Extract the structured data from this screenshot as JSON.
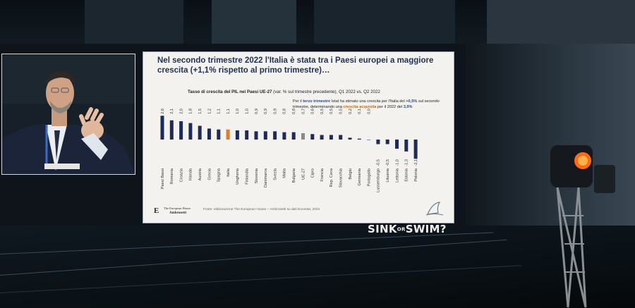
{
  "slide": {
    "title": "Nel secondo trimestre 2022 l'Italia è stata tra i Paesi europei a maggiore crescita (+1,1% rispetto al primo trimestre)…",
    "chart_title_bold": "Tasso di crescita del PIL nei Paesi UE-27",
    "chart_title_rest": " (var. % sul trimestre precedente), Q1 2022 vs. Q2 2022",
    "note": {
      "p1": "Per il ",
      "p2": "terzo trimestre",
      "p3": " Istat ha stimato una crescita per l'Italia del ",
      "p4": "+0,5%",
      "p5": " sul secondo trimestre, determinando una ",
      "p6": "crescita acquisita",
      "p7": " per il 2022 del ",
      "p8": "3,9%"
    },
    "source": "Fonte: elaborazione The European House – Ambrosetti su dati Eurostat, 2022",
    "logo": {
      "mark": "E",
      "line1": "The European House",
      "line2": "Ambrosetti"
    }
  },
  "event_brand": {
    "sink": "SINK",
    "or": "OR",
    "swim": "SWIM",
    "mark": "?"
  },
  "colors": {
    "bar_default": "#1d2a5a",
    "bar_italy": "#e07b2a",
    "bar_eu": "#8a8a8a",
    "title": "#1f3056"
  },
  "chart_data": {
    "type": "bar",
    "title": "Tasso di crescita del PIL nei Paesi UE-27 (var. % sul trimestre precedente), Q1 2022 vs. Q2 2022",
    "categories": [
      "Paesi Bassi",
      "Romania",
      "Croazia",
      "Irlanda",
      "Austria",
      "Grecia",
      "Spagna",
      "Italia",
      "Ungheria",
      "Finlandia",
      "Slovenia",
      "Danimarca",
      "Svezia",
      "Malta",
      "Bulgaria",
      "UE-27",
      "Cipro",
      "Francia",
      "Rep. Ceca",
      "Slovacchia",
      "Belgio",
      "Germania",
      "Portogallo",
      "Lussemburgo",
      "Lituania",
      "Lettonia",
      "Estonia",
      "Polonia"
    ],
    "value_labels": [
      "2,6",
      "2,1",
      "2,0",
      "1,8",
      "1,5",
      "1,2",
      "1,1",
      "1,1",
      "1,0",
      "1,0",
      "0,9",
      "0,9",
      "0,9",
      "0,8",
      "0,8",
      "0,7",
      "0,6",
      "0,5",
      "0,5",
      "0,5",
      "0,2",
      "0,1",
      "0,0",
      "-0,5",
      "-0,5",
      "-1,0",
      "-1,3",
      "-2,1"
    ],
    "values": [
      2.6,
      2.1,
      2.0,
      1.8,
      1.5,
      1.2,
      1.1,
      1.1,
      1.0,
      1.0,
      0.9,
      0.9,
      0.9,
      0.8,
      0.8,
      0.7,
      0.6,
      0.5,
      0.5,
      0.5,
      0.2,
      0.1,
      0.0,
      -0.5,
      -0.5,
      -1.0,
      -1.3,
      -2.1
    ],
    "highlight": {
      "Italia": "bar_italy",
      "UE-27": "bar_eu"
    },
    "xlabel": "",
    "ylabel": "",
    "ylim": [
      -2.1,
      2.6
    ],
    "grid": false
  }
}
